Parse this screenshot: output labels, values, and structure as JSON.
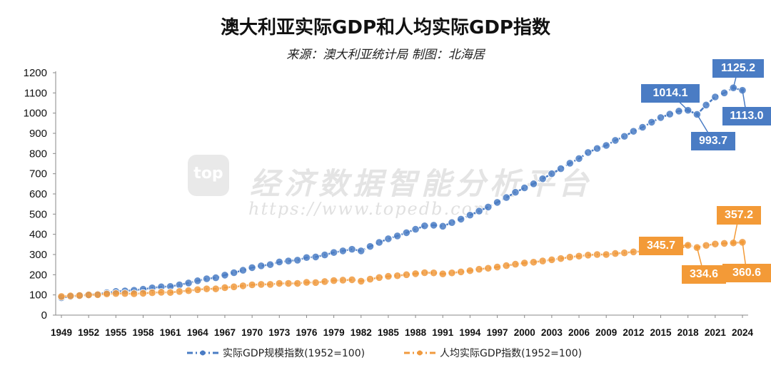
{
  "title": "澳大利亚实际GDP和人均实际GDP指数",
  "subtitle": "来源：澳大利亚统计局 制图：北海居",
  "watermark": {
    "logo": "top",
    "text": "经济数据智能分析平台",
    "url": "https://www.topedb.com"
  },
  "colors": {
    "gdp": "#4A7CC4",
    "per_capita": "#F09A3E",
    "gdp_label_bg": "#4A7CC4",
    "pc_label_bg": "#F39A37"
  },
  "chart_data": {
    "type": "line",
    "title": "澳大利亚实际GDP和人均实际GDP指数",
    "subtitle": "来源：澳大利亚统计局 制图：北海居",
    "xlabel": "",
    "ylabel": "",
    "ylim": [
      0,
      1200
    ],
    "yticks": [
      0,
      100,
      200,
      300,
      400,
      500,
      600,
      700,
      800,
      900,
      1000,
      1100,
      1200
    ],
    "xticks": [
      "1949",
      "1952",
      "1955",
      "1958",
      "1961",
      "1964",
      "1967",
      "1970",
      "1973",
      "1976",
      "1979",
      "1982",
      "1985",
      "1988",
      "1991",
      "1994",
      "1997",
      "2000",
      "2003",
      "2006",
      "2009",
      "2012",
      "2015",
      "2018",
      "2021",
      "2024"
    ],
    "grid": false,
    "legend_position": "bottom",
    "x": [
      1949,
      1950,
      1951,
      1952,
      1953,
      1954,
      1955,
      1956,
      1957,
      1958,
      1959,
      1960,
      1961,
      1962,
      1963,
      1964,
      1965,
      1966,
      1967,
      1968,
      1969,
      1970,
      1971,
      1972,
      1973,
      1974,
      1975,
      1976,
      1977,
      1978,
      1979,
      1980,
      1981,
      1982,
      1983,
      1984,
      1985,
      1986,
      1987,
      1988,
      1989,
      1990,
      1991,
      1992,
      1993,
      1994,
      1995,
      1996,
      1997,
      1998,
      1999,
      2000,
      2001,
      2002,
      2003,
      2004,
      2005,
      2006,
      2007,
      2008,
      2009,
      2010,
      2011,
      2012,
      2013,
      2014,
      2015,
      2016,
      2017,
      2018,
      2019,
      2020,
      2021,
      2022,
      2023,
      2024
    ],
    "series": [
      {
        "name": "实际GDP规模指数(1952=100)",
        "values": [
          86,
          92,
          97,
          100,
          104,
          111,
          117,
          120,
          123,
          128,
          135,
          140,
          142,
          150,
          159,
          170,
          180,
          185,
          198,
          210,
          222,
          235,
          244,
          250,
          263,
          268,
          272,
          285,
          288,
          298,
          310,
          318,
          326,
          318,
          340,
          360,
          378,
          392,
          408,
          425,
          442,
          445,
          440,
          458,
          475,
          495,
          515,
          535,
          558,
          582,
          608,
          630,
          650,
          675,
          700,
          725,
          752,
          775,
          805,
          825,
          840,
          865,
          885,
          910,
          930,
          955,
          978,
          995,
          1010,
          1014.1,
          993.7,
          1040,
          1080,
          1100,
          1125.2,
          1113.0
        ]
      },
      {
        "name": "人均实际GDP指数(1952=100)",
        "values": [
          92,
          95,
          97,
          100,
          101,
          105,
          107,
          107,
          106,
          108,
          111,
          113,
          112,
          117,
          121,
          126,
          130,
          130,
          136,
          140,
          145,
          150,
          152,
          152,
          157,
          157,
          157,
          162,
          161,
          166,
          171,
          173,
          175,
          168,
          178,
          186,
          192,
          195,
          200,
          205,
          210,
          209,
          204,
          209,
          214,
          220,
          227,
          232,
          238,
          245,
          252,
          258,
          262,
          268,
          274,
          280,
          287,
          292,
          297,
          300,
          300,
          305,
          308,
          313,
          316,
          320,
          323,
          325,
          328,
          345.7,
          334.6,
          345,
          352,
          355,
          357.2,
          360.6
        ]
      }
    ],
    "annotations": [
      {
        "series": "实际GDP规模指数(1952=100)",
        "x": 2018,
        "text": "1014.1"
      },
      {
        "series": "实际GDP规模指数(1952=100)",
        "x": 2019,
        "text": "993.7"
      },
      {
        "series": "实际GDP规模指数(1952=100)",
        "x": 2023,
        "text": "1125.2"
      },
      {
        "series": "实际GDP规模指数(1952=100)",
        "x": 2024,
        "text": "1113.0"
      },
      {
        "series": "人均实际GDP指数(1952=100)",
        "x": 2018,
        "text": "345.7"
      },
      {
        "series": "人均实际GDP指数(1952=100)",
        "x": 2019,
        "text": "334.6"
      },
      {
        "series": "人均实际GDP指数(1952=100)",
        "x": 2023,
        "text": "357.2"
      },
      {
        "series": "人均实际GDP指数(1952=100)",
        "x": 2024,
        "text": "360.6"
      }
    ]
  }
}
